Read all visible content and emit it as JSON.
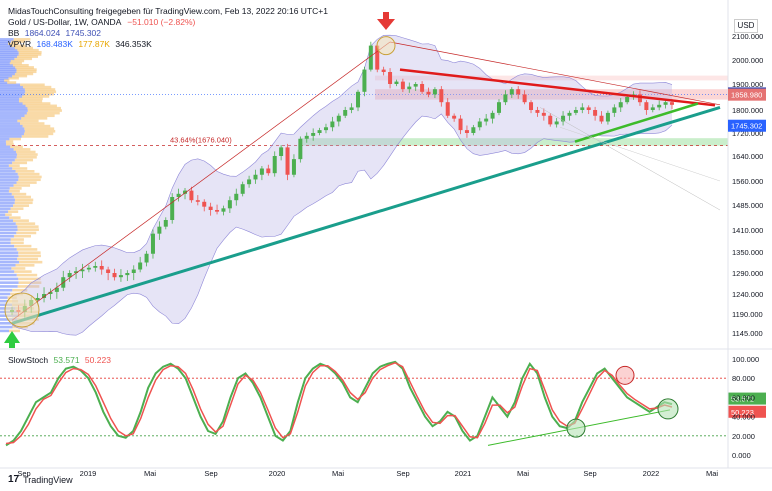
{
  "header": {
    "credit": "MidasTouchConsulting freigegeben für TradingView.com, Feb 13, 2022 20:16 UTC+1",
    "symbol": "Gold  / US-Dollar, 1W, OANDA",
    "change": "−51.010 (−2.82%)",
    "bb_label": "BB",
    "bb_upper": "1864.024",
    "bb_lower": "1745.302",
    "vpvr_label": "VPVR",
    "vpvr_v1": "168.483K",
    "vpvr_v2": "177.87K",
    "vpvr_v3": "346.353K",
    "currency": "USD"
  },
  "stoch": {
    "label": "SlowStoch",
    "k": "53.571",
    "d": "50.223"
  },
  "footer": {
    "brand": "TradingView"
  },
  "colors": {
    "up": "#26a69a",
    "candle_up": "#4caf50",
    "candle_down": "#ef5350",
    "bb_fill": "#b7b3e6",
    "trend_green": "#1a9e8c",
    "resistance_red": "#e01a1a",
    "support_green": "#3dbb2b",
    "stoch_k": "#4caf50",
    "stoch_d": "#ef5350",
    "bb_tag": "#3f51b5",
    "price_tag": "#2962ff"
  },
  "annotations": {
    "fib_label": "43.64%(1676.040)"
  },
  "chart_data": [
    {
      "type": "candlestick",
      "title": "Gold / US-Dollar, 1W, OANDA",
      "x_ticks": [
        "Sep",
        "2019",
        "Mai",
        "Sep",
        "2020",
        "Mai",
        "Sep",
        "2021",
        "Mai",
        "Sep",
        "2022",
        "Mai"
      ],
      "y_ticks": [
        2100.0,
        2000.0,
        1900.0,
        1800.0,
        1720.0,
        1640.0,
        1560.0,
        1485.0,
        1410.0,
        1350.0,
        1290.0,
        1240.0,
        1190.0,
        1145.0
      ],
      "y_tick_labels": [
        "2100.000",
        "2000.000",
        "1900.000",
        "1800.000",
        "1720.000",
        "1640.000",
        "1560.000",
        "1485.000",
        "1410.000",
        "1350.000",
        "1290.000",
        "1240.000",
        "1190.000",
        "1145.000"
      ],
      "ylim": [
        1110,
        2160
      ],
      "price_labels": [
        {
          "value": "1864.024",
          "price": 1864.0
        },
        {
          "value": "1858.980",
          "price": 1859.0
        },
        {
          "value": "1745.302",
          "price": 1745.3
        }
      ],
      "close_series": [
        1200,
        1195,
        1210,
        1225,
        1230,
        1240,
        1245,
        1255,
        1280,
        1290,
        1295,
        1300,
        1305,
        1310,
        1300,
        1290,
        1280,
        1285,
        1290,
        1300,
        1320,
        1345,
        1400,
        1420,
        1440,
        1510,
        1520,
        1530,
        1500,
        1495,
        1480,
        1470,
        1465,
        1475,
        1500,
        1520,
        1550,
        1565,
        1580,
        1600,
        1585,
        1640,
        1670,
        1580,
        1630,
        1700,
        1710,
        1720,
        1730,
        1740,
        1760,
        1780,
        1800,
        1810,
        1870,
        1960,
        2060,
        1960,
        1950,
        1900,
        1910,
        1880,
        1890,
        1900,
        1870,
        1860,
        1880,
        1830,
        1780,
        1770,
        1730,
        1720,
        1740,
        1760,
        1770,
        1790,
        1830,
        1860,
        1880,
        1860,
        1830,
        1800,
        1790,
        1780,
        1750,
        1760,
        1780,
        1790,
        1800,
        1810,
        1800,
        1780,
        1760,
        1790,
        1810,
        1830,
        1850,
        1860,
        1830,
        1800,
        1810,
        1820,
        1830,
        1820
      ],
      "annotations": [
        "43.64%(1676.040)"
      ]
    },
    {
      "type": "line",
      "title": "SlowStoch",
      "series": [
        {
          "name": "53.571",
          "values": [
            10,
            15,
            25,
            40,
            55,
            60,
            65,
            80,
            90,
            92,
            88,
            80,
            65,
            45,
            30,
            20,
            18,
            25,
            45,
            70,
            85,
            92,
            95,
            90,
            80,
            60,
            40,
            25,
            22,
            35,
            60,
            80,
            85,
            75,
            60,
            40,
            20,
            15,
            25,
            55,
            80,
            90,
            95,
            92,
            85,
            75,
            60,
            55,
            70,
            85,
            92,
            95,
            97,
            90,
            70,
            55,
            40,
            30,
            35,
            45,
            40,
            25,
            15,
            20,
            40,
            60,
            50,
            40,
            55,
            80,
            95,
            85,
            60,
            40,
            30,
            28,
            35,
            55,
            70,
            85,
            90,
            80,
            70,
            60,
            55,
            50,
            45,
            50,
            55,
            53
          ]
        },
        {
          "name": "50.223",
          "values": [
            12,
            13,
            20,
            32,
            48,
            58,
            62,
            75,
            86,
            90,
            89,
            84,
            72,
            55,
            38,
            25,
            20,
            22,
            38,
            60,
            78,
            89,
            93,
            92,
            85,
            68,
            48,
            32,
            24,
            30,
            52,
            74,
            83,
            78,
            65,
            47,
            28,
            18,
            22,
            45,
            72,
            86,
            93,
            93,
            87,
            78,
            65,
            58,
            65,
            80,
            89,
            93,
            96,
            92,
            76,
            60,
            45,
            34,
            33,
            41,
            41,
            30,
            19,
            18,
            33,
            52,
            52,
            44,
            50,
            72,
            90,
            88,
            68,
            47,
            35,
            30,
            33,
            48,
            64,
            80,
            88,
            83,
            73,
            64,
            58,
            53,
            48,
            49,
            52,
            50
          ]
        }
      ],
      "y_ticks": [
        100.0,
        80.0,
        60.0,
        40.0,
        20.0,
        0.0
      ],
      "y_tick_labels": [
        "100.000",
        "80.000",
        "60.000",
        "40.000",
        "20.000",
        "0.000"
      ],
      "ylim": [
        0,
        100
      ],
      "price_labels": [
        {
          "value": "53.571",
          "level": 53.571
        },
        {
          "value": "50.223",
          "level": 50.223
        }
      ]
    }
  ]
}
